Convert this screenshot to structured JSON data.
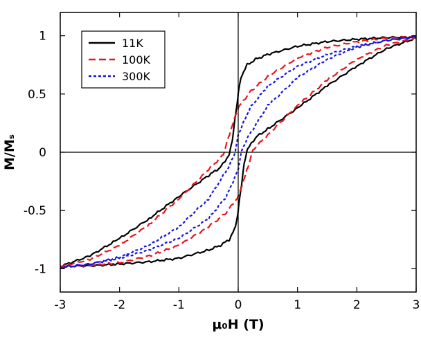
{
  "chart_data": {
    "type": "line",
    "title": "",
    "xlabel": "μ₀H (T)",
    "ylabel": "M/Mₛ",
    "xlim": [
      -3,
      3
    ],
    "ylim": [
      -1.2,
      1.2
    ],
    "xticks": [
      -3,
      -2,
      -1,
      0,
      1,
      2,
      3
    ],
    "xtick_labels": [
      "-3",
      "-2",
      "-1",
      "0",
      "1",
      "2",
      "3"
    ],
    "yticks": [
      -1,
      -0.5,
      0,
      0.5,
      1
    ],
    "ytick_labels": [
      "-1",
      "-0.5",
      "0",
      "0.5",
      "1"
    ],
    "zero_lines": true,
    "legend": {
      "position": "top-left"
    },
    "series": [
      {
        "name": "11K",
        "color": "#000000",
        "style": "solid",
        "descending": [
          [
            3.0,
            0.99
          ],
          [
            2.5,
            0.985
          ],
          [
            2.0,
            0.97
          ],
          [
            1.5,
            0.95
          ],
          [
            1.0,
            0.91
          ],
          [
            0.5,
            0.84
          ],
          [
            0.3,
            0.8
          ],
          [
            0.15,
            0.75
          ],
          [
            0.05,
            0.65
          ],
          [
            0.0,
            0.5
          ],
          [
            -0.05,
            0.3
          ],
          [
            -0.1,
            0.1
          ],
          [
            -0.15,
            -0.02
          ],
          [
            -0.3,
            -0.13
          ],
          [
            -0.5,
            -0.2
          ],
          [
            -1.0,
            -0.38
          ],
          [
            -1.5,
            -0.57
          ],
          [
            -2.0,
            -0.74
          ],
          [
            -2.5,
            -0.89
          ],
          [
            -3.0,
            -0.98
          ]
        ],
        "ascending": [
          [
            -3.0,
            -0.98
          ],
          [
            -2.5,
            -0.975
          ],
          [
            -2.0,
            -0.96
          ],
          [
            -1.5,
            -0.94
          ],
          [
            -1.0,
            -0.91
          ],
          [
            -0.5,
            -0.84
          ],
          [
            -0.3,
            -0.8
          ],
          [
            -0.15,
            -0.75
          ],
          [
            -0.05,
            -0.65
          ],
          [
            0.0,
            -0.5
          ],
          [
            0.05,
            -0.3
          ],
          [
            0.1,
            -0.1
          ],
          [
            0.15,
            0.02
          ],
          [
            0.3,
            0.13
          ],
          [
            0.5,
            0.2
          ],
          [
            1.0,
            0.38
          ],
          [
            1.5,
            0.57
          ],
          [
            2.0,
            0.74
          ],
          [
            2.5,
            0.89
          ],
          [
            3.0,
            0.98
          ]
        ]
      },
      {
        "name": "100K",
        "color": "#e8141c",
        "style": "dashed",
        "descending": [
          [
            3.0,
            0.99
          ],
          [
            2.5,
            0.98
          ],
          [
            2.0,
            0.95
          ],
          [
            1.5,
            0.9
          ],
          [
            1.0,
            0.81
          ],
          [
            0.5,
            0.65
          ],
          [
            0.2,
            0.52
          ],
          [
            0.0,
            0.38
          ],
          [
            -0.15,
            0.15
          ],
          [
            -0.25,
            -0.02
          ],
          [
            -0.5,
            -0.15
          ],
          [
            -1.0,
            -0.4
          ],
          [
            -1.5,
            -0.62
          ],
          [
            -2.0,
            -0.8
          ],
          [
            -2.5,
            -0.92
          ],
          [
            -3.0,
            -0.98
          ]
        ],
        "ascending": [
          [
            -3.0,
            -0.98
          ],
          [
            -2.5,
            -0.97
          ],
          [
            -2.0,
            -0.95
          ],
          [
            -1.5,
            -0.89
          ],
          [
            -1.0,
            -0.8
          ],
          [
            -0.5,
            -0.64
          ],
          [
            -0.2,
            -0.52
          ],
          [
            0.0,
            -0.38
          ],
          [
            0.15,
            -0.15
          ],
          [
            0.25,
            0.02
          ],
          [
            0.5,
            0.15
          ],
          [
            1.0,
            0.4
          ],
          [
            1.5,
            0.62
          ],
          [
            2.0,
            0.8
          ],
          [
            2.5,
            0.92
          ],
          [
            3.0,
            0.98
          ]
        ]
      },
      {
        "name": "300K",
        "color": "#1414e0",
        "style": "dotted",
        "descending": [
          [
            3.0,
            0.99
          ],
          [
            2.5,
            0.96
          ],
          [
            2.0,
            0.91
          ],
          [
            1.5,
            0.84
          ],
          [
            1.0,
            0.74
          ],
          [
            0.5,
            0.57
          ],
          [
            0.2,
            0.38
          ],
          [
            0.0,
            0.15
          ],
          [
            -0.05,
            0.0
          ],
          [
            -0.15,
            -0.12
          ],
          [
            -0.5,
            -0.4
          ],
          [
            -1.0,
            -0.64
          ],
          [
            -1.5,
            -0.8
          ],
          [
            -2.0,
            -0.9
          ],
          [
            -2.5,
            -0.96
          ],
          [
            -3.0,
            -0.99
          ]
        ],
        "ascending": [
          [
            -3.0,
            -0.99
          ],
          [
            -2.5,
            -0.96
          ],
          [
            -2.0,
            -0.91
          ],
          [
            -1.5,
            -0.84
          ],
          [
            -1.0,
            -0.74
          ],
          [
            -0.5,
            -0.57
          ],
          [
            -0.2,
            -0.38
          ],
          [
            0.0,
            -0.15
          ],
          [
            0.05,
            0.0
          ],
          [
            0.15,
            0.12
          ],
          [
            0.5,
            0.4
          ],
          [
            1.0,
            0.64
          ],
          [
            1.5,
            0.8
          ],
          [
            2.0,
            0.9
          ],
          [
            2.5,
            0.96
          ],
          [
            3.0,
            0.99
          ]
        ]
      }
    ]
  }
}
